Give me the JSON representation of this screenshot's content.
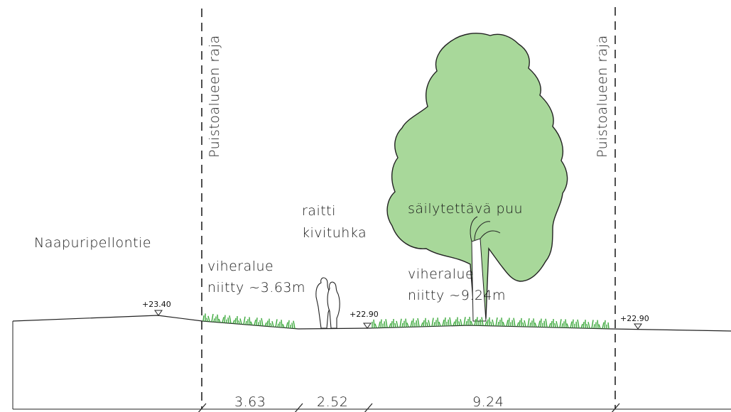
{
  "labels": {
    "road": "Naapuripellontie",
    "boundary_left": "Puistoalueen raja",
    "boundary_right": "Puistoalueen raja",
    "path_line1": "raitti",
    "path_line2": "kivituhka",
    "tree": "säilytettävä puu",
    "green_left_line1": "viheralue",
    "green_left_line2": "niitty ~3.63m",
    "green_right_line1": "viheralue",
    "green_right_line2": "niitty ~9.24m"
  },
  "elevations": {
    "road": "+23.40",
    "path": "+22.90",
    "right": "+22.90"
  },
  "dimensions": {
    "green_left": "3.63",
    "path": "2.52",
    "green_right": "9.24"
  },
  "colors": {
    "tree_fill": "#a8d89a",
    "grass": "#3aa83a",
    "line": "#222222"
  },
  "icons": {
    "tree": "deciduous-tree-icon",
    "people": "pedestrians-icon",
    "elevation_marker": "triangle-down-icon"
  }
}
